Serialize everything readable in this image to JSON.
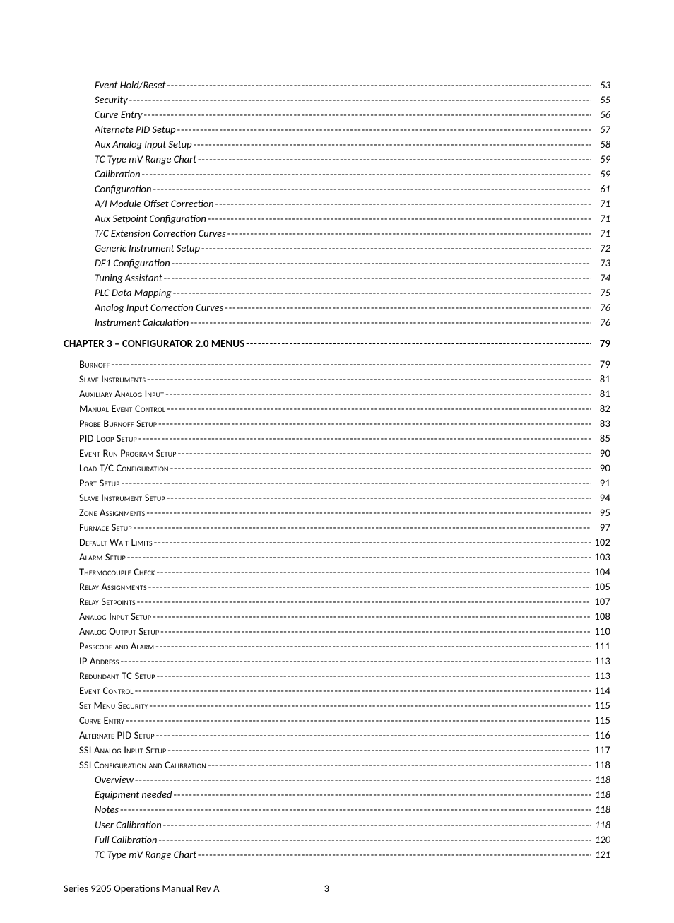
{
  "colors": {
    "background": "#ffffff",
    "text": "#000000"
  },
  "typography": {
    "body_font": "Calibri, 'Segoe UI', Arial, sans-serif",
    "body_size_pt": 11,
    "chapter_bold": true,
    "level2_smallcaps": true,
    "level3_italic": true
  },
  "toc": [
    {
      "level": 3,
      "title": "Event Hold/Reset",
      "page": "53"
    },
    {
      "level": 3,
      "title": "Security",
      "page": "55"
    },
    {
      "level": 3,
      "title": "Curve Entry",
      "page": "56"
    },
    {
      "level": 3,
      "title": "Alternate PID Setup",
      "page": "57"
    },
    {
      "level": 3,
      "title": "Aux Analog Input Setup",
      "page": "58"
    },
    {
      "level": 3,
      "title": "TC Type mV Range Chart",
      "page": "59"
    },
    {
      "level": 3,
      "title": "Calibration",
      "page": "59"
    },
    {
      "level": 3,
      "title": "Configuration",
      "page": "61"
    },
    {
      "level": 3,
      "title": "A/I Module Offset Correction",
      "page": "71"
    },
    {
      "level": 3,
      "title": "Aux Setpoint Configuration",
      "page": "71"
    },
    {
      "level": 3,
      "title": "T/C Extension Correction Curves",
      "page": "71"
    },
    {
      "level": 3,
      "title": "Generic Instrument Setup",
      "page": "72"
    },
    {
      "level": 3,
      "title": "DF1 Configuration",
      "page": "73"
    },
    {
      "level": 3,
      "title": "Tuning Assistant",
      "page": "74"
    },
    {
      "level": 3,
      "title": "PLC Data Mapping",
      "page": "75"
    },
    {
      "level": 3,
      "title": "Analog Input Correction Curves",
      "page": "76"
    },
    {
      "level": 3,
      "title": "Instrument Calculation",
      "page": "76"
    },
    {
      "level": 1,
      "title": "CHAPTER 3 – CONFIGURATOR 2.0 MENUS",
      "page": "79"
    },
    {
      "level": 2,
      "title": "Burnoff",
      "page": "79"
    },
    {
      "level": 2,
      "title": "Slave Instruments",
      "page": "81"
    },
    {
      "level": 2,
      "title": "Auxiliary Analog Input",
      "page": "81"
    },
    {
      "level": 2,
      "title": "Manual Event Control",
      "page": "82"
    },
    {
      "level": 2,
      "title": "Probe Burnoff Setup",
      "page": "83"
    },
    {
      "level": 2,
      "title": "PID Loop Setup",
      "page": "85"
    },
    {
      "level": 2,
      "title": "Event Run Program Setup",
      "page": "90"
    },
    {
      "level": 2,
      "title": "Load T/C Configuration",
      "page": "90"
    },
    {
      "level": 2,
      "title": "Port Setup",
      "page": "91"
    },
    {
      "level": 2,
      "title": "Slave Instrument Setup",
      "page": "94"
    },
    {
      "level": 2,
      "title": "Zone Assignments",
      "page": "95"
    },
    {
      "level": 2,
      "title": "Furnace Setup",
      "page": "97"
    },
    {
      "level": 2,
      "title": "Default Wait Limits",
      "page": "102"
    },
    {
      "level": 2,
      "title": "Alarm Setup",
      "page": "103"
    },
    {
      "level": 2,
      "title": "Thermocouple Check",
      "page": "104"
    },
    {
      "level": 2,
      "title": "Relay Assignments",
      "page": "105"
    },
    {
      "level": 2,
      "title": "Relay Setpoints",
      "page": "107"
    },
    {
      "level": 2,
      "title": "Analog Input Setup",
      "page": "108"
    },
    {
      "level": 2,
      "title": "Analog Output Setup",
      "page": "110"
    },
    {
      "level": 2,
      "title": "Passcode and Alarm",
      "page": "111"
    },
    {
      "level": 2,
      "title": "IP Address",
      "page": "113"
    },
    {
      "level": 2,
      "title": "Redundant TC Setup",
      "page": "113"
    },
    {
      "level": 2,
      "title": "Event Control",
      "page": "114"
    },
    {
      "level": 2,
      "title": "Set Menu Security",
      "page": "115"
    },
    {
      "level": 2,
      "title": "Curve Entry",
      "page": "115"
    },
    {
      "level": 2,
      "title": "Alternate PID Setup",
      "page": "116"
    },
    {
      "level": 2,
      "title": "SSI Analog Input Setup",
      "page": "117"
    },
    {
      "level": 2,
      "title": "SSI Configuration and Calibration",
      "page": "118"
    },
    {
      "level": 3,
      "title": "Overview",
      "page": "118"
    },
    {
      "level": 3,
      "title": "Equipment needed",
      "page": "118"
    },
    {
      "level": 3,
      "title": "Notes",
      "page": "118"
    },
    {
      "level": 3,
      "title": "User Calibration",
      "page": "118"
    },
    {
      "level": 3,
      "title": "Full Calibration",
      "page": "120"
    },
    {
      "level": 3,
      "title": "TC Type mV Range Chart",
      "page": "121"
    }
  ],
  "footer": {
    "left": "Series 9205 Operations Manual Rev A",
    "page_number": "3"
  }
}
